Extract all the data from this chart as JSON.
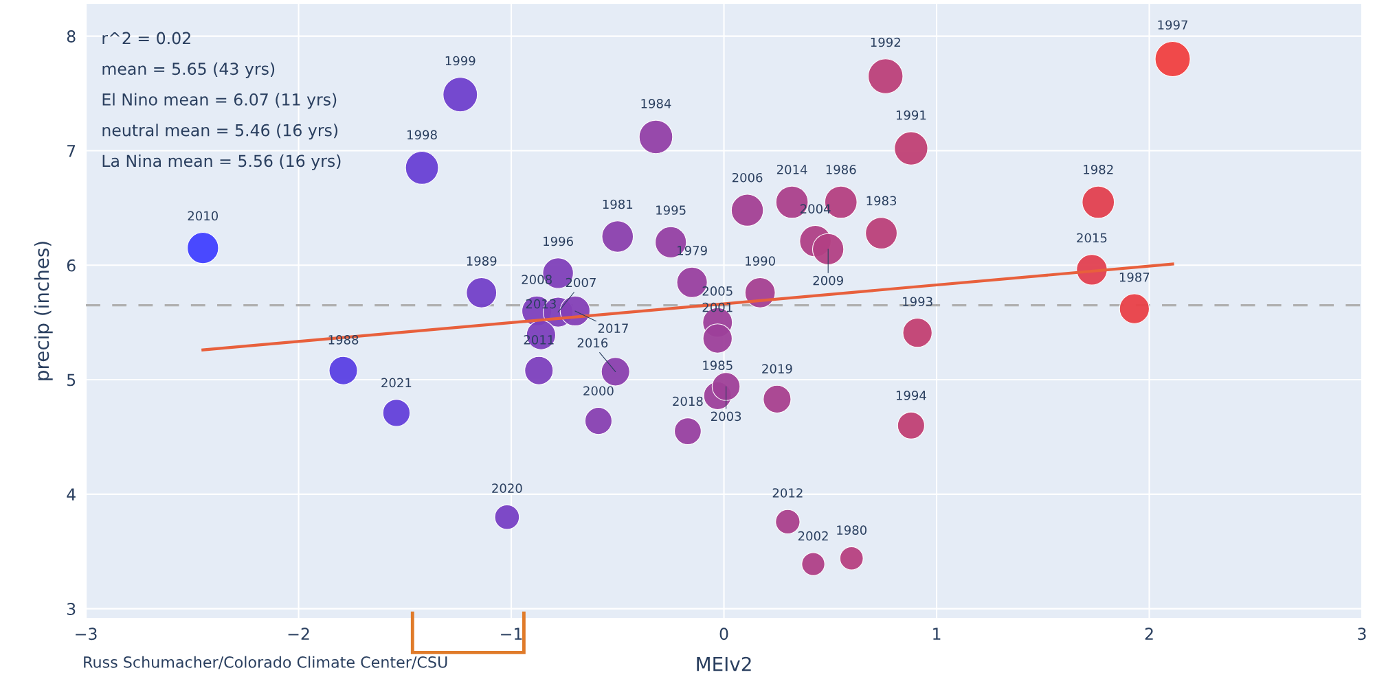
{
  "chart_data": {
    "type": "bubble",
    "xlabel": "MEIv2",
    "ylabel": "precip (inches)",
    "xlim": [
      -3,
      3
    ],
    "ylim": [
      2.92,
      8.28
    ],
    "xticks": [
      -3,
      -2,
      -1,
      0,
      1,
      2,
      3
    ],
    "yticks": [
      3,
      4,
      5,
      6,
      7,
      8
    ],
    "grid": true,
    "legend": false,
    "marker": "circle",
    "series": [
      {
        "type": "bubble",
        "x": [
          -2.45,
          -1.24,
          -1.42,
          -1.14,
          -1.79,
          -1.54,
          -1.02,
          -0.88,
          -0.78,
          -0.7,
          -0.78,
          -0.86,
          -0.87,
          -0.5,
          -0.25,
          -0.32,
          -0.15,
          -0.51,
          -0.59,
          -0.17,
          -0.03,
          0.01,
          -0.03,
          -0.03,
          0.17,
          0.11,
          0.32,
          0.55,
          0.43,
          0.49,
          0.74,
          0.76,
          0.88,
          0.91,
          0.88,
          0.25,
          0.3,
          0.42,
          0.6,
          1.73,
          1.76,
          1.93,
          2.11
        ],
        "values": [
          6.15,
          7.49,
          6.85,
          5.76,
          5.08,
          4.71,
          3.8,
          5.6,
          5.59,
          5.6,
          5.93,
          5.39,
          5.08,
          6.25,
          6.2,
          7.12,
          5.85,
          5.07,
          4.64,
          4.55,
          4.86,
          4.94,
          5.5,
          5.36,
          5.76,
          6.48,
          6.55,
          6.55,
          6.21,
          6.14,
          6.28,
          7.65,
          7.02,
          5.41,
          4.6,
          4.83,
          3.76,
          3.39,
          3.44,
          5.96,
          6.55,
          5.62,
          7.8
        ],
        "sizes": [
          0.79,
          0.96,
          0.88,
          0.74,
          0.65,
          0.6,
          0.49,
          0.72,
          0.72,
          0.72,
          0.76,
          0.69,
          0.65,
          0.8,
          0.79,
          0.91,
          0.75,
          0.65,
          0.59,
          0.58,
          0.62,
          0.63,
          0.71,
          0.69,
          0.74,
          0.83,
          0.84,
          0.84,
          0.8,
          0.79,
          0.81,
          0.98,
          0.9,
          0.69,
          0.59,
          0.62,
          0.48,
          0.43,
          0.44,
          0.76,
          0.84,
          0.72,
          1
        ],
        "colors": [
          "#4040ff",
          "#6f40cc",
          "#6840d4",
          "#7340c8",
          "#5a40e3",
          "#6340d9",
          "#7740c4",
          "#7d40bd",
          "#8040b9",
          "#8440b6",
          "#8040b9",
          "#7d40bd",
          "#7d40bd",
          "#8b40ad",
          "#9540a3",
          "#9240a6",
          "#99409f",
          "#8b40ae",
          "#8840b1",
          "#9840a0",
          "#9d409a",
          "#9f4098",
          "#9d409a",
          "#9d409a",
          "#a54091",
          "#a34094",
          "#ab408b",
          "#b44081",
          "#af4086",
          "#b24084",
          "#bb4079",
          "#bc4079",
          "#c04074",
          "#c24072",
          "#c04074",
          "#a8408e",
          "#aa408c",
          "#af4087",
          "#b6407f",
          "#e14050",
          "#e2404f",
          "#e94047",
          "#f04040"
        ]
      },
      {
        "type": "line",
        "x": [
          -2.45,
          2.11
        ],
        "values": [
          5.26,
          6.01
        ],
        "color": "#e8603c",
        "marker": "none"
      }
    ],
    "ref_lines": [
      {
        "axis": "y",
        "value": 5.65,
        "color": "#b0b0b0",
        "line_style": "dashed"
      }
    ],
    "annotations": [
      "r^2 = 0.02",
      "mean = 5.65 (43 yrs)",
      "El Nino mean = 6.07 (11 yrs)",
      "neutral mean = 5.46 (16 yrs)",
      "La Nina mean = 5.56 (16 yrs)",
      "Russ Schumacher/Colorado Climate Center/CSU",
      {
        "text": "2010",
        "x": -2.45,
        "y": 6.15
      },
      {
        "text": "1999",
        "x": -1.24,
        "y": 7.49
      },
      {
        "text": "1998",
        "x": -1.42,
        "y": 6.85
      },
      {
        "text": "1989",
        "x": -1.14,
        "y": 5.76
      },
      {
        "text": "1988",
        "x": -1.79,
        "y": 5.08
      },
      {
        "text": "2021",
        "x": -1.54,
        "y": 4.71
      },
      {
        "text": "2020",
        "x": -1.02,
        "y": 3.8
      },
      {
        "text": "2008",
        "x": -0.88,
        "y": 5.6
      },
      {
        "text": "2007",
        "x": -0.78,
        "y": 5.59
      },
      {
        "text": "2017",
        "x": -0.7,
        "y": 5.6
      },
      {
        "text": "1996",
        "x": -0.78,
        "y": 5.93
      },
      {
        "text": "2013",
        "x": -0.86,
        "y": 5.39
      },
      {
        "text": "2011",
        "x": -0.87,
        "y": 5.08
      },
      {
        "text": "1981",
        "x": -0.5,
        "y": 6.25
      },
      {
        "text": "1995",
        "x": -0.25,
        "y": 6.2
      },
      {
        "text": "1984",
        "x": -0.32,
        "y": 7.12
      },
      {
        "text": "1979",
        "x": -0.15,
        "y": 5.85
      },
      {
        "text": "2016",
        "x": -0.51,
        "y": 5.07
      },
      {
        "text": "2000",
        "x": -0.59,
        "y": 4.64
      },
      {
        "text": "2018",
        "x": -0.17,
        "y": 4.55
      },
      {
        "text": "1985",
        "x": -0.03,
        "y": 4.86
      },
      {
        "text": "2003",
        "x": 0.01,
        "y": 4.94
      },
      {
        "text": "2005",
        "x": -0.03,
        "y": 5.5
      },
      {
        "text": "2001",
        "x": -0.03,
        "y": 5.36
      },
      {
        "text": "1990",
        "x": 0.17,
        "y": 5.76
      },
      {
        "text": "2006",
        "x": 0.11,
        "y": 6.48
      },
      {
        "text": "2014",
        "x": 0.32,
        "y": 6.55
      },
      {
        "text": "1986",
        "x": 0.55,
        "y": 6.55
      },
      {
        "text": "2004",
        "x": 0.43,
        "y": 6.21
      },
      {
        "text": "2009",
        "x": 0.49,
        "y": 6.14
      },
      {
        "text": "1983",
        "x": 0.74,
        "y": 6.28
      },
      {
        "text": "1992",
        "x": 0.76,
        "y": 7.65
      },
      {
        "text": "1991",
        "x": 0.88,
        "y": 7.02
      },
      {
        "text": "1993",
        "x": 0.91,
        "y": 5.41
      },
      {
        "text": "1994",
        "x": 0.88,
        "y": 4.6
      },
      {
        "text": "2019",
        "x": 0.25,
        "y": 4.83
      },
      {
        "text": "2012",
        "x": 0.3,
        "y": 3.76
      },
      {
        "text": "2002",
        "x": 0.42,
        "y": 3.39
      },
      {
        "text": "1980",
        "x": 0.6,
        "y": 3.44
      },
      {
        "text": "2015",
        "x": 1.73,
        "y": 5.96
      },
      {
        "text": "1982",
        "x": 1.76,
        "y": 6.55
      },
      {
        "text": "1987",
        "x": 1.93,
        "y": 5.62
      },
      {
        "text": "1997",
        "x": 2.11,
        "y": 7.8
      }
    ]
  }
}
